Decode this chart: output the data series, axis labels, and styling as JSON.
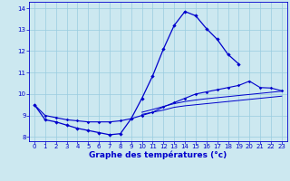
{
  "title": "Graphe des températures (°c)",
  "background_color": "#cce8f0",
  "grid_color": "#99cce0",
  "line_color": "#0000cc",
  "hours": [
    0,
    1,
    2,
    3,
    4,
    5,
    6,
    7,
    8,
    9,
    10,
    11,
    12,
    13,
    14,
    15,
    16,
    17,
    18,
    19,
    20,
    21,
    22,
    23
  ],
  "series1": [
    9.5,
    8.8,
    8.7,
    8.55,
    8.4,
    8.3,
    8.2,
    8.1,
    8.15,
    8.85,
    9.8,
    10.85,
    12.1,
    13.2,
    13.85,
    13.65,
    13.05,
    12.55,
    11.85,
    11.4,
    null,
    null,
    null,
    null
  ],
  "series3": [
    9.5,
    9.0,
    8.9,
    8.8,
    8.75,
    8.7,
    8.7,
    8.7,
    8.75,
    8.85,
    9.0,
    9.15,
    9.4,
    9.6,
    9.8,
    10.0,
    10.1,
    10.2,
    10.3,
    10.4,
    10.6,
    10.3,
    10.28,
    10.15
  ],
  "series4": [
    null,
    null,
    null,
    null,
    null,
    null,
    null,
    null,
    null,
    null,
    9.15,
    9.28,
    9.42,
    9.55,
    9.65,
    9.72,
    9.78,
    9.83,
    9.88,
    9.93,
    9.98,
    10.03,
    10.08,
    10.13
  ],
  "series5": [
    null,
    null,
    null,
    null,
    null,
    null,
    null,
    null,
    null,
    null,
    9.05,
    9.15,
    9.25,
    9.38,
    9.45,
    9.5,
    9.55,
    9.6,
    9.65,
    9.7,
    9.75,
    9.8,
    9.85,
    9.9
  ],
  "xlim": [
    -0.5,
    23.5
  ],
  "ylim": [
    7.8,
    14.3
  ],
  "yticks": [
    8,
    9,
    10,
    11,
    12,
    13,
    14
  ],
  "xticks": [
    0,
    1,
    2,
    3,
    4,
    5,
    6,
    7,
    8,
    9,
    10,
    11,
    12,
    13,
    14,
    15,
    16,
    17,
    18,
    19,
    20,
    21,
    22,
    23
  ],
  "tick_fontsize": 5,
  "xlabel_fontsize": 6.5
}
